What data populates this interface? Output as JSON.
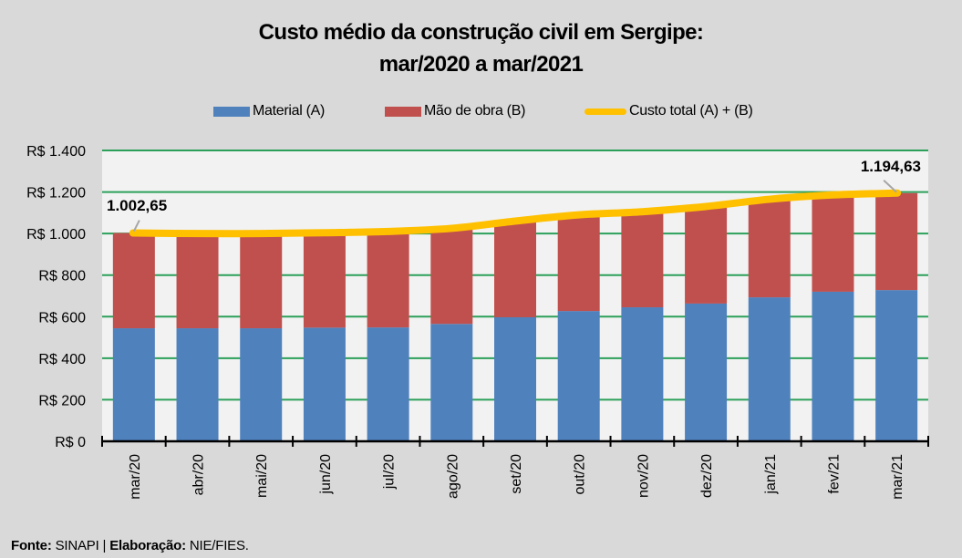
{
  "title_line1": "Custo médio da construção civil em Sergipe:",
  "title_line2": "mar/2020 a mar/2021",
  "legend": [
    {
      "label": "Material (A)",
      "color": "#4f81bd",
      "kind": "bar"
    },
    {
      "label": "Mão de obra (B)",
      "color": "#c0504d",
      "kind": "bar"
    },
    {
      "label": "Custo total (A) + (B)",
      "color": "#ffc000",
      "kind": "line"
    }
  ],
  "footer": {
    "source_label": "Fonte:",
    "source_value": "SINAPI |",
    "author_label": "Elaboração:",
    "author_value": "NIE/FIES."
  },
  "colors": {
    "background": "#d9d9d9",
    "plot_background": "#f2f2f2",
    "gridline": "#2ca05a",
    "material": "#4f81bd",
    "labor": "#c0504d",
    "total": "#ffc000",
    "leader": "#a6a6a6"
  },
  "chart_data": {
    "type": "bar",
    "stacked": true,
    "title": "Custo médio da construção civil em Sergipe: mar/2020 a mar/2021",
    "xlabel": "",
    "ylabel": "",
    "categories": [
      "mar/20",
      "abr/20",
      "mai/20",
      "jun/20",
      "jul/20",
      "ago/20",
      "set/20",
      "out/20",
      "nov/20",
      "dez/20",
      "jan/21",
      "fev/21",
      "mar/21"
    ],
    "series": [
      {
        "name": "Material (A)",
        "type": "bar",
        "values": [
          544,
          544,
          544,
          547,
          548,
          565,
          597,
          627,
          645,
          663,
          693,
          720,
          728
        ]
      },
      {
        "name": "Mão de obra (B)",
        "type": "bar",
        "values": [
          458.65,
          456,
          456,
          457,
          462,
          460,
          463,
          463,
          460,
          467,
          472,
          466,
          466.63
        ]
      },
      {
        "name": "Custo total (A) + (B)",
        "type": "line",
        "values": [
          1002.65,
          1000,
          1000,
          1004,
          1010,
          1025,
          1060,
          1090,
          1105,
          1130,
          1165,
          1186,
          1194.63
        ]
      }
    ],
    "ylim": [
      0,
      1400
    ],
    "yticks": [
      0,
      200,
      400,
      600,
      800,
      1000,
      1200,
      1400
    ],
    "ytick_labels": [
      "R$ 0",
      "R$ 200",
      "R$ 400",
      "R$ 600",
      "R$ 800",
      "R$ 1.000",
      "R$ 1.200",
      "R$ 1.400"
    ],
    "grid": true,
    "legend_position": "top",
    "annotations": [
      {
        "category": "mar/20",
        "text": "1.002,65"
      },
      {
        "category": "mar/21",
        "text": "1.194,63"
      }
    ]
  }
}
